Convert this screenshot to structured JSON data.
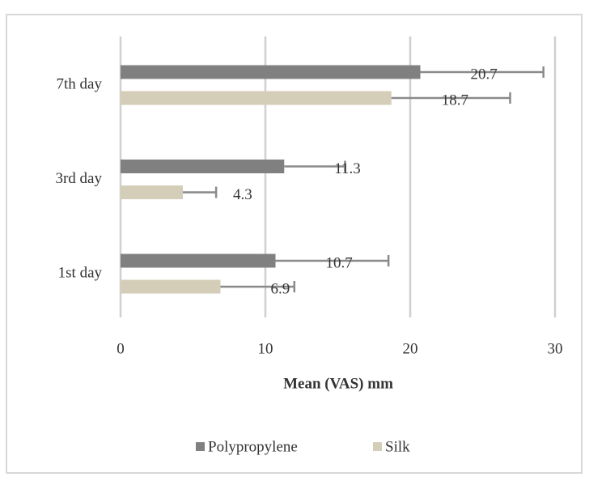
{
  "chart_data": {
    "type": "bar",
    "orientation": "horizontal",
    "x_label": "Mean (VAS) mm",
    "categories": [
      "1st day",
      "3rd day",
      "7th day"
    ],
    "series": [
      {
        "name": "Polypropylene",
        "color": "#808080",
        "values": [
          10.7,
          11.3,
          20.7
        ],
        "errors": [
          7.8,
          4.2,
          8.5
        ]
      },
      {
        "name": "Silk",
        "color": "#d4cdb8",
        "values": [
          6.9,
          4.3,
          18.7
        ],
        "errors": [
          5.1,
          2.3,
          8.2
        ]
      }
    ],
    "xlim": [
      0,
      30
    ],
    "xticks": [
      0,
      10,
      20,
      30
    ],
    "grid": true,
    "legend": "bottom"
  }
}
